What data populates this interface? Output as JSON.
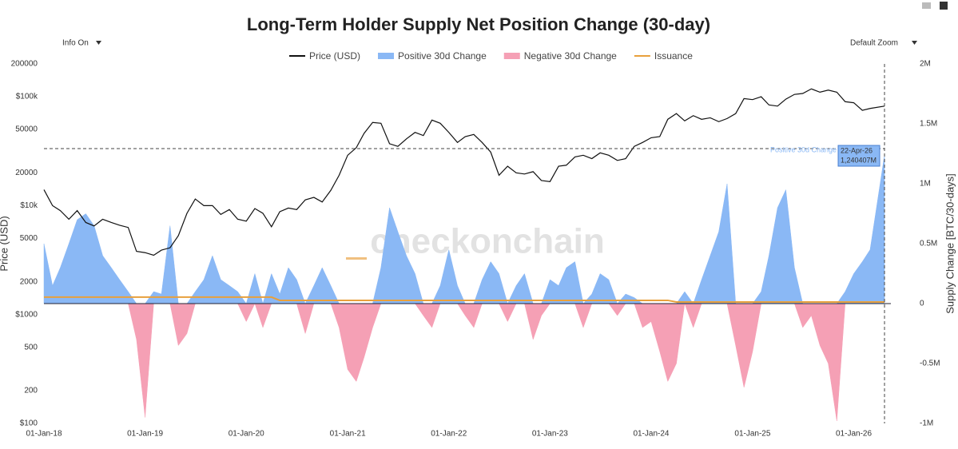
{
  "chart_data": {
    "type": "area",
    "title": "Long-Term Holder Supply Net Position Change (30-day)",
    "controls": {
      "info": "Info On",
      "zoom": "Default Zoom"
    },
    "watermark": "checkonchain",
    "y_label": "Price (USD)",
    "y2_label": "Supply Change [BTC/30-days]",
    "log_y": true,
    "x": [
      "2018-01-01",
      "2018-02-01",
      "2018-03-01",
      "2018-04-01",
      "2018-05-01",
      "2018-06-01",
      "2018-07-01",
      "2018-08-01",
      "2018-09-01",
      "2018-10-01",
      "2018-11-01",
      "2018-12-01",
      "2019-01-01",
      "2019-02-01",
      "2019-03-01",
      "2019-04-01",
      "2019-05-01",
      "2019-06-01",
      "2019-07-01",
      "2019-08-01",
      "2019-09-01",
      "2019-10-01",
      "2019-11-01",
      "2019-12-01",
      "2020-01-01",
      "2020-02-01",
      "2020-03-01",
      "2020-04-01",
      "2020-05-01",
      "2020-06-01",
      "2020-07-01",
      "2020-08-01",
      "2020-09-01",
      "2020-10-01",
      "2020-11-01",
      "2020-12-01",
      "2021-01-01",
      "2021-02-01",
      "2021-03-01",
      "2021-04-01",
      "2021-05-01",
      "2021-06-01",
      "2021-07-01",
      "2021-08-01",
      "2021-09-01",
      "2021-10-01",
      "2021-11-01",
      "2021-12-01",
      "2022-01-01",
      "2022-02-01",
      "2022-03-01",
      "2022-04-01",
      "2022-05-01",
      "2022-06-01",
      "2022-07-01",
      "2022-08-01",
      "2022-09-01",
      "2022-10-01",
      "2022-11-01",
      "2022-12-01",
      "2023-01-01",
      "2023-02-01",
      "2023-03-01",
      "2023-04-01",
      "2023-05-01",
      "2023-06-01",
      "2023-07-01",
      "2023-08-01",
      "2023-09-01",
      "2023-10-01",
      "2023-11-01",
      "2023-12-01",
      "2024-01-01",
      "2024-02-01",
      "2024-03-01",
      "2024-04-01",
      "2024-05-01",
      "2024-06-01",
      "2024-07-01",
      "2024-08-01",
      "2024-09-01",
      "2024-10-01",
      "2024-11-01",
      "2024-12-01",
      "2025-01-01",
      "2025-02-01",
      "2025-03-01",
      "2025-04-01",
      "2025-05-01",
      "2025-06-01",
      "2025-07-01",
      "2025-08-01",
      "2025-09-01",
      "2025-10-01",
      "2025-11-01",
      "2025-12-01",
      "2026-01-01",
      "2026-02-01",
      "2026-03-01",
      "2026-04-22"
    ],
    "xlim": [
      "2018-01-01",
      "2026-05-15"
    ],
    "xticks": [
      {
        "value": "2018-01-01",
        "label": "01-Jan-18"
      },
      {
        "value": "2019-01-01",
        "label": "01-Jan-19"
      },
      {
        "value": "2020-01-01",
        "label": "01-Jan-20"
      },
      {
        "value": "2021-01-01",
        "label": "01-Jan-21"
      },
      {
        "value": "2022-01-01",
        "label": "01-Jan-22"
      },
      {
        "value": "2023-01-01",
        "label": "01-Jan-23"
      },
      {
        "value": "2024-01-01",
        "label": "01-Jan-24"
      },
      {
        "value": "2025-01-01",
        "label": "01-Jan-25"
      },
      {
        "value": "2026-01-01",
        "label": "01-Jan-26"
      }
    ],
    "ylim": [
      100,
      200000
    ],
    "yticks": [
      {
        "value": 100,
        "label": "$100"
      },
      200,
      500,
      {
        "value": 1000,
        "label": "$1000"
      },
      2000,
      5000,
      {
        "value": 10000,
        "label": "$10k"
      },
      20000,
      50000,
      {
        "value": 100000,
        "label": "$100k"
      },
      200000
    ],
    "y2lim": [
      -1000000,
      2000000
    ],
    "y2ticks": [
      {
        "value": -1000000,
        "label": "-1M"
      },
      {
        "value": -500000,
        "label": "-0.5M"
      },
      0,
      {
        "value": 500000,
        "label": "0.5M"
      },
      {
        "value": 1000000,
        "label": "1M"
      },
      {
        "value": 1500000,
        "label": "1.5M"
      },
      {
        "value": 2000000,
        "label": "2M"
      }
    ],
    "series": [
      {
        "name": "Price (USD)",
        "color": "#111111",
        "kind": "line",
        "values": [
          14000,
          10000,
          9000,
          7500,
          9000,
          7000,
          6500,
          7500,
          7000,
          6600,
          6300,
          3800,
          3700,
          3500,
          3900,
          4100,
          5300,
          8500,
          11500,
          10000,
          10000,
          8300,
          9200,
          7500,
          7200,
          9400,
          8500,
          6400,
          8800,
          9500,
          9200,
          11300,
          11900,
          10800,
          13800,
          19000,
          29000,
          34000,
          46000,
          58000,
          57000,
          37000,
          35000,
          41000,
          47000,
          44000,
          61000,
          57000,
          47000,
          38000,
          43000,
          45000,
          38000,
          31000,
          19000,
          23000,
          20000,
          19500,
          20500,
          17000,
          16600,
          23000,
          23500,
          28000,
          29000,
          27000,
          30500,
          29000,
          26000,
          27000,
          35000,
          38000,
          42000,
          43000,
          62000,
          70000,
          60000,
          67000,
          62000,
          64000,
          59000,
          63000,
          70000,
          96000,
          94000,
          100000,
          84000,
          82000,
          95000,
          105000,
          107000,
          118000,
          110000,
          115000,
          110000,
          90000,
          88000,
          75000,
          78000,
          82000
        ]
      },
      {
        "name": "Positive 30d Change",
        "color": "#8ab8f5",
        "kind": "area",
        "axis": "y2",
        "values": [
          500000,
          150000,
          300000,
          500000,
          700000,
          750000,
          650000,
          400000,
          300000,
          200000,
          100000,
          0,
          0,
          100000,
          80000,
          650000,
          0,
          0,
          100000,
          200000,
          400000,
          200000,
          150000,
          100000,
          0,
          250000,
          0,
          250000,
          80000,
          300000,
          200000,
          0,
          150000,
          300000,
          150000,
          0,
          0,
          0,
          0,
          0,
          300000,
          800000,
          600000,
          400000,
          250000,
          0,
          0,
          150000,
          450000,
          150000,
          0,
          0,
          200000,
          350000,
          250000,
          0,
          150000,
          250000,
          0,
          0,
          200000,
          150000,
          300000,
          350000,
          0,
          80000,
          250000,
          200000,
          0,
          80000,
          50000,
          0,
          0,
          0,
          0,
          0,
          100000,
          0,
          200000,
          400000,
          600000,
          1000000,
          0,
          0,
          0,
          100000,
          400000,
          800000,
          950000,
          300000,
          0,
          0,
          0,
          0,
          0,
          100000,
          250000,
          350000,
          450000,
          1240407
        ]
      },
      {
        "name": "Negative 30d Change",
        "color": "#f5a0b5",
        "kind": "area",
        "axis": "y2",
        "values": [
          0,
          0,
          0,
          0,
          0,
          0,
          0,
          0,
          0,
          0,
          0,
          -300000,
          -950000,
          0,
          0,
          0,
          -350000,
          -250000,
          0,
          0,
          0,
          0,
          0,
          0,
          -150000,
          0,
          -200000,
          0,
          0,
          0,
          0,
          -250000,
          0,
          0,
          0,
          -200000,
          -550000,
          -650000,
          -450000,
          -200000,
          0,
          0,
          0,
          0,
          0,
          -100000,
          -200000,
          0,
          0,
          0,
          -100000,
          -200000,
          0,
          0,
          0,
          -150000,
          0,
          0,
          -300000,
          -100000,
          0,
          0,
          0,
          0,
          -200000,
          0,
          0,
          0,
          -100000,
          0,
          0,
          -200000,
          -150000,
          -400000,
          -650000,
          -500000,
          0,
          -200000,
          0,
          0,
          0,
          0,
          -350000,
          -700000,
          -400000,
          0,
          0,
          0,
          0,
          0,
          -200000,
          -100000,
          -350000,
          -500000,
          -980000,
          0,
          0,
          0,
          0,
          0
        ]
      },
      {
        "name": "Issuance",
        "color": "#e8a03c",
        "kind": "line",
        "axis": "y2",
        "values": [
          54000,
          54000,
          54000,
          54000,
          54000,
          54000,
          54000,
          54000,
          54000,
          54000,
          54000,
          54000,
          54000,
          54000,
          54000,
          54000,
          54000,
          54000,
          54000,
          54000,
          54000,
          54000,
          54000,
          54000,
          54000,
          54000,
          54000,
          54000,
          27000,
          27000,
          27000,
          27000,
          27000,
          27000,
          27000,
          27000,
          27000,
          27000,
          27000,
          27000,
          27000,
          27000,
          27000,
          27000,
          27000,
          27000,
          27000,
          27000,
          27000,
          27000,
          27000,
          27000,
          27000,
          27000,
          27000,
          27000,
          27000,
          27000,
          27000,
          27000,
          27000,
          27000,
          27000,
          27000,
          27000,
          27000,
          27000,
          27000,
          27000,
          27000,
          27000,
          27000,
          27000,
          27000,
          27000,
          13500,
          13500,
          13500,
          13500,
          13500,
          13500,
          13500,
          13500,
          13500,
          13500,
          13500,
          13500,
          13500,
          13500,
          13500,
          13500,
          13500,
          13500,
          13500,
          13500,
          13500,
          13500,
          13500,
          13500,
          13500
        ]
      }
    ],
    "tooltip": {
      "series": "Positive 30d Change",
      "date": "22-Apr-26",
      "value_label": "1,240407M"
    }
  }
}
